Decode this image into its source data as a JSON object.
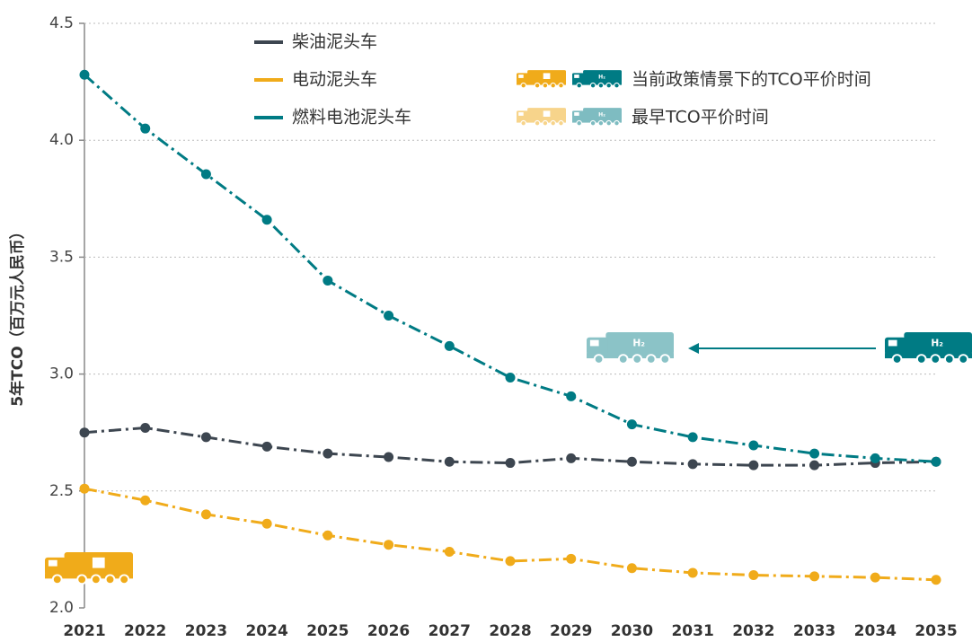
{
  "chart_data": {
    "type": "line",
    "y_label": "5年TCO（百万元人民币）",
    "categories": [
      "2021",
      "2022",
      "2023",
      "2024",
      "2025",
      "2026",
      "2027",
      "2028",
      "2029",
      "2030",
      "2031",
      "2032",
      "2033",
      "2034",
      "2035"
    ],
    "series": [
      {
        "name": "柴油泥头车",
        "color": "#3d4650",
        "values": [
          2.75,
          2.77,
          2.73,
          2.69,
          2.66,
          2.645,
          2.625,
          2.62,
          2.64,
          2.625,
          2.615,
          2.61,
          2.61,
          2.62,
          2.625
        ]
      },
      {
        "name": "电动泥头车",
        "color": "#f0ab1a",
        "values": [
          2.51,
          2.46,
          2.4,
          2.36,
          2.31,
          2.27,
          2.24,
          2.2,
          2.21,
          2.17,
          2.15,
          2.14,
          2.135,
          2.13,
          2.12
        ]
      },
      {
        "name": "燃料电池泥头车",
        "color": "#007b84",
        "values": [
          4.28,
          4.05,
          3.855,
          3.66,
          3.4,
          3.25,
          3.12,
          2.985,
          2.905,
          2.785,
          2.73,
          2.695,
          2.66,
          2.64,
          2.625
        ]
      }
    ],
    "legend_notes": [
      "当前政策情景下的TCO平价时间",
      "最早TCO平价时间"
    ],
    "ylim": [
      2.0,
      4.5
    ],
    "yticks": [
      {
        "value": 2.0,
        "label": "2.0"
      },
      2.5,
      {
        "value": 3.0,
        "label": "3.0"
      },
      3.5,
      {
        "value": 4.0,
        "label": "4.0"
      },
      4.5
    ],
    "grid": true
  }
}
